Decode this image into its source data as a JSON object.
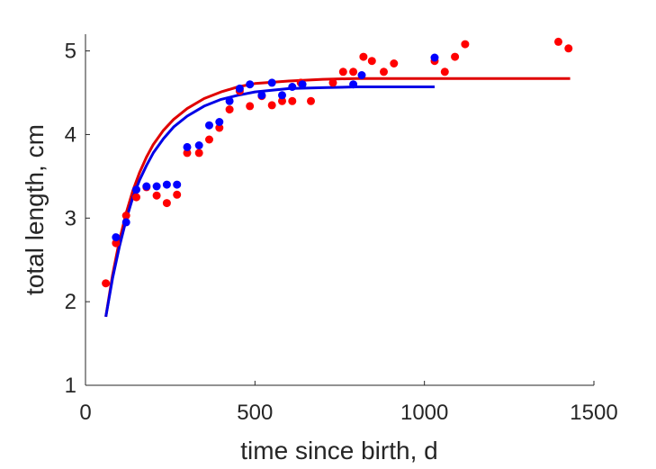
{
  "chart_data": {
    "type": "scatter",
    "title": "",
    "xlabel": "time since birth, d",
    "ylabel": "total length, cm",
    "xlim": [
      0,
      1500
    ],
    "ylim": [
      1,
      5.2
    ],
    "xticks": [
      "0",
      "500",
      "1000",
      "1500"
    ],
    "yticks": [
      "1",
      "2",
      "3",
      "4",
      "5"
    ],
    "grid": false,
    "legend": "none",
    "series": [
      {
        "kind": "points",
        "color": "#ff0000",
        "x": [
          60,
          90,
          120,
          150,
          180,
          210,
          240,
          270,
          300,
          335,
          365,
          395,
          425,
          455,
          485,
          520,
          550,
          580,
          610,
          635,
          665,
          730,
          760,
          790,
          820,
          845,
          880,
          910,
          1030,
          1060,
          1090,
          1120,
          1395,
          1425
        ],
        "y": [
          2.22,
          2.7,
          3.03,
          3.25,
          3.37,
          3.27,
          3.18,
          3.28,
          3.78,
          3.78,
          3.94,
          4.08,
          4.3,
          4.52,
          4.34,
          4.46,
          4.35,
          4.4,
          4.4,
          4.62,
          4.4,
          4.62,
          4.75,
          4.75,
          4.93,
          4.88,
          4.75,
          4.85,
          4.88,
          4.75,
          4.93,
          5.08,
          5.11,
          5.03
        ]
      },
      {
        "kind": "points",
        "color": "#0000ff",
        "x": [
          90,
          120,
          150,
          180,
          210,
          240,
          270,
          300,
          335,
          365,
          395,
          425,
          455,
          485,
          520,
          550,
          580,
          610,
          640,
          790,
          815,
          1030
        ],
        "y": [
          2.77,
          2.95,
          3.34,
          3.38,
          3.38,
          3.4,
          3.4,
          3.85,
          3.87,
          4.11,
          4.15,
          4.4,
          4.55,
          4.6,
          4.47,
          4.62,
          4.47,
          4.57,
          4.6,
          4.6,
          4.71,
          4.92
        ]
      },
      {
        "kind": "curve",
        "color": "#e00000",
        "x": [
          60,
          80,
          100,
          120,
          140,
          160,
          180,
          200,
          230,
          260,
          300,
          350,
          400,
          450,
          500,
          600,
          700,
          800,
          1000,
          1200,
          1400,
          1430
        ],
        "y": [
          1.82,
          2.32,
          2.73,
          3.06,
          3.33,
          3.55,
          3.73,
          3.88,
          4.05,
          4.18,
          4.31,
          4.43,
          4.51,
          4.57,
          4.61,
          4.64,
          4.66,
          4.67,
          4.67,
          4.67,
          4.67,
          4.67
        ]
      },
      {
        "kind": "curve",
        "color": "#0000e6",
        "x": [
          60,
          80,
          100,
          120,
          140,
          160,
          180,
          200,
          230,
          260,
          300,
          350,
          400,
          450,
          500,
          600,
          700,
          800,
          900,
          1000,
          1030
        ],
        "y": [
          1.82,
          2.28,
          2.66,
          2.98,
          3.25,
          3.46,
          3.63,
          3.78,
          3.95,
          4.09,
          4.22,
          4.34,
          4.42,
          4.47,
          4.51,
          4.55,
          4.56,
          4.57,
          4.57,
          4.57,
          4.57
        ]
      }
    ]
  }
}
